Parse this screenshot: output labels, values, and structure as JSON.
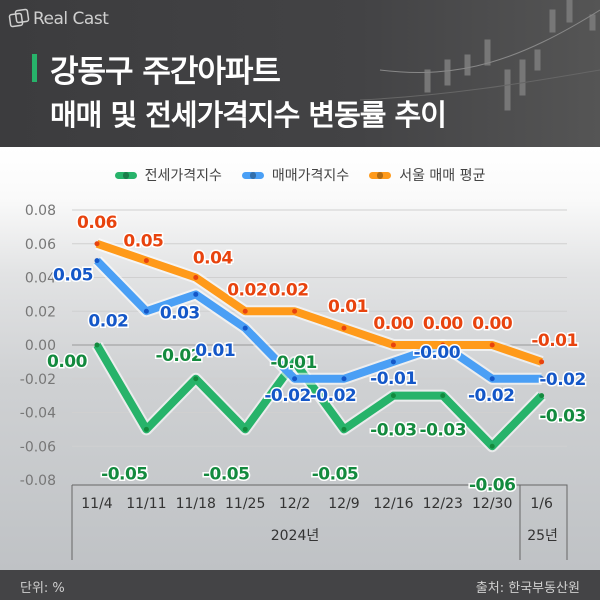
{
  "header": {
    "logo": "Real Cast",
    "title_line1": "강동구 주간아파트",
    "title_line2": "매매 및 전세가격지수 변동률 추이"
  },
  "colors": {
    "jeonse": "#27b36a",
    "maemae": "#4a9ff5",
    "seoul": "#ff9a1a",
    "jeonse_label": "#138a3e",
    "maemae_label": "#1457c8",
    "seoul_label": "#e8430e"
  },
  "chart_data": {
    "type": "line",
    "title": "강동구 주간아파트 매매 및 전세가격지수 변동률 추이",
    "categories": [
      "11/4",
      "11/11",
      "11/18",
      "11/25",
      "12/2",
      "12/9",
      "12/16",
      "12/23",
      "12/30",
      "1/6"
    ],
    "year_groups": [
      {
        "label": "2024년",
        "from": 0,
        "to": 8
      },
      {
        "label": "25년",
        "from": 9,
        "to": 9
      }
    ],
    "series": [
      {
        "name": "전세가격지수",
        "key": "jeonse",
        "values": [
          0.0,
          -0.05,
          -0.02,
          -0.05,
          -0.01,
          -0.05,
          -0.03,
          -0.03,
          -0.06,
          -0.03
        ],
        "labels": [
          "0.00",
          "-0.05",
          "-0.02",
          "-0.05",
          "-0.01",
          "-0.05",
          "-0.03",
          "-0.03",
          "-0.06",
          "-0.03"
        ]
      },
      {
        "name": "매매가격지수",
        "key": "maemae",
        "values": [
          0.05,
          0.02,
          0.03,
          0.01,
          -0.02,
          -0.02,
          -0.01,
          -0.0,
          -0.02,
          -0.02
        ],
        "labels": [
          "0.05",
          "0.02",
          "0.03",
          "0.01",
          "-0.02",
          "-0.02",
          "-0.01",
          "-0.00",
          "-0.02",
          "-0.02"
        ]
      },
      {
        "name": "서울 매매 평균",
        "key": "seoul",
        "values": [
          0.06,
          0.05,
          0.04,
          0.02,
          0.02,
          0.01,
          0.0,
          0.0,
          0.0,
          -0.01
        ],
        "labels": [
          "0.06",
          "0.05",
          "0.04",
          "0.02",
          "0.02",
          "0.01",
          "0.00",
          "0.00",
          "0.00",
          "-0.01"
        ]
      }
    ],
    "yticks": [
      "0.08",
      "0.06",
      "0.04",
      "0.02",
      "0.00",
      "-0.02",
      "-0.04",
      "-0.06",
      "-0.08"
    ],
    "ylim": [
      -0.08,
      0.08
    ],
    "grid": true,
    "legend": "top-center",
    "unit": "단위: %",
    "source": "출처: 한국부동산원"
  }
}
